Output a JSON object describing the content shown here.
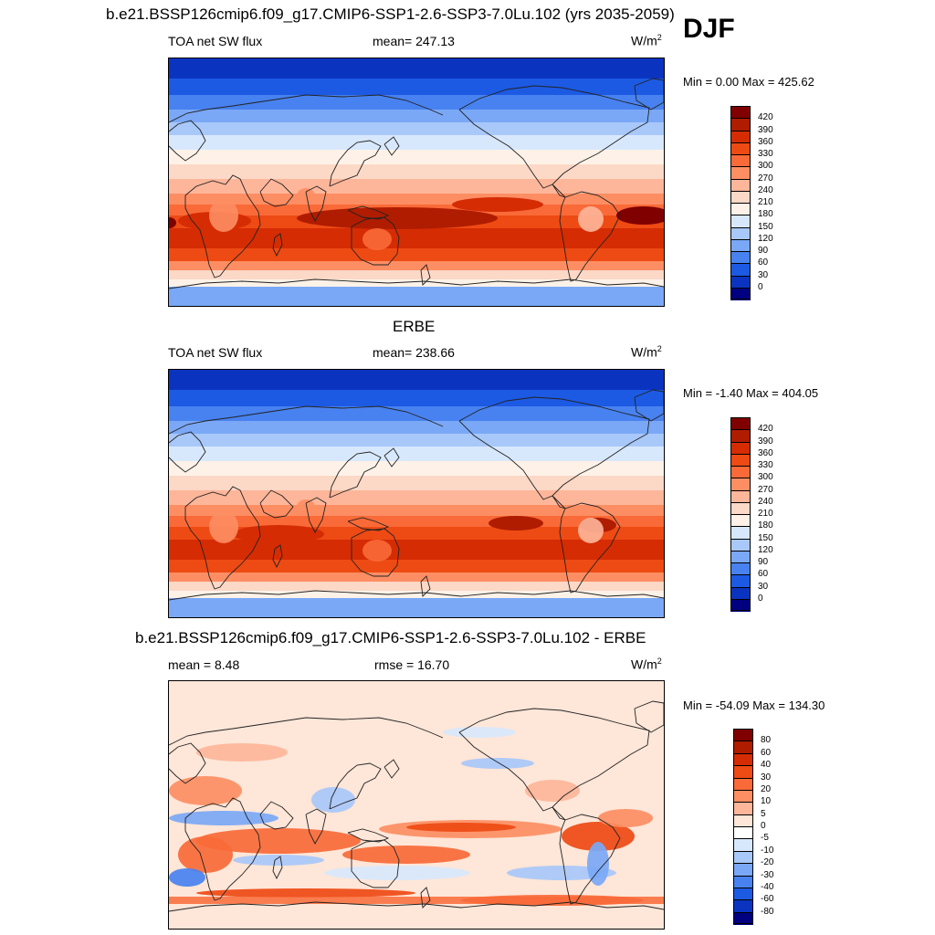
{
  "page": {
    "title": "b.e21.BSSP126cmip6.f09_g17.CMIP6-SSP1-2.6-SSP3-7.0Lu.102 (yrs 2035-2059)",
    "season": "DJF"
  },
  "panels": [
    {
      "id": "model",
      "title": "",
      "left_label": "TOA net SW flux",
      "center_label": "mean= 247.13",
      "unit_base": "W/m",
      "unit_sup": "2",
      "minmax": "Min =   0.00 Max = 425.62",
      "colorbar": {
        "labels": [
          "420",
          "390",
          "360",
          "330",
          "300",
          "270",
          "240",
          "210",
          "180",
          "150",
          "120",
          "90",
          "60",
          "30",
          "0"
        ],
        "colors": [
          "#800000",
          "#b01c00",
          "#d52c04",
          "#ee4a14",
          "#f96a38",
          "#fd8e63",
          "#fdb69a",
          "#fcd8c6",
          "#fef2e8",
          "#d8e8fc",
          "#a8c8fa",
          "#7aa8f6",
          "#4882f0",
          "#1c5ae4",
          "#0a34c0",
          "#000080"
        ]
      },
      "map_style": "mean"
    },
    {
      "id": "obs",
      "title": "ERBE",
      "left_label": "TOA net SW flux",
      "center_label": "mean= 238.66",
      "unit_base": "W/m",
      "unit_sup": "2",
      "minmax": "Min =  -1.40 Max = 404.05",
      "colorbar": {
        "labels": [
          "420",
          "390",
          "360",
          "330",
          "300",
          "270",
          "240",
          "210",
          "180",
          "150",
          "120",
          "90",
          "60",
          "30",
          "0"
        ],
        "colors": [
          "#800000",
          "#b01c00",
          "#d52c04",
          "#ee4a14",
          "#f96a38",
          "#fd8e63",
          "#fdb69a",
          "#fcd8c6",
          "#fef2e8",
          "#d8e8fc",
          "#a8c8fa",
          "#7aa8f6",
          "#4882f0",
          "#1c5ae4",
          "#0a34c0",
          "#000080"
        ]
      },
      "map_style": "mean"
    },
    {
      "id": "diff",
      "title": "b.e21.BSSP126cmip6.f09_g17.CMIP6-SSP1-2.6-SSP3-7.0Lu.102 - ERBE",
      "left_label": "mean =   8.48",
      "center_label": "rmse =  16.70",
      "unit_base": "W/m",
      "unit_sup": "2",
      "minmax": "Min = -54.09 Max = 134.30",
      "colorbar": {
        "labels": [
          "80",
          "60",
          "40",
          "30",
          "20",
          "10",
          "5",
          "0",
          "-5",
          "-10",
          "-20",
          "-30",
          "-40",
          "-60",
          "-80"
        ],
        "colors": [
          "#800000",
          "#b01c00",
          "#d52c04",
          "#ee4a14",
          "#f96a38",
          "#fd8e63",
          "#fdb69a",
          "#fee6d8",
          "#ffffff",
          "#d8e8fc",
          "#a8c8fa",
          "#7aa8f6",
          "#4882f0",
          "#1c5ae4",
          "#0a34c0",
          "#000080"
        ]
      },
      "map_style": "diff"
    }
  ]
}
